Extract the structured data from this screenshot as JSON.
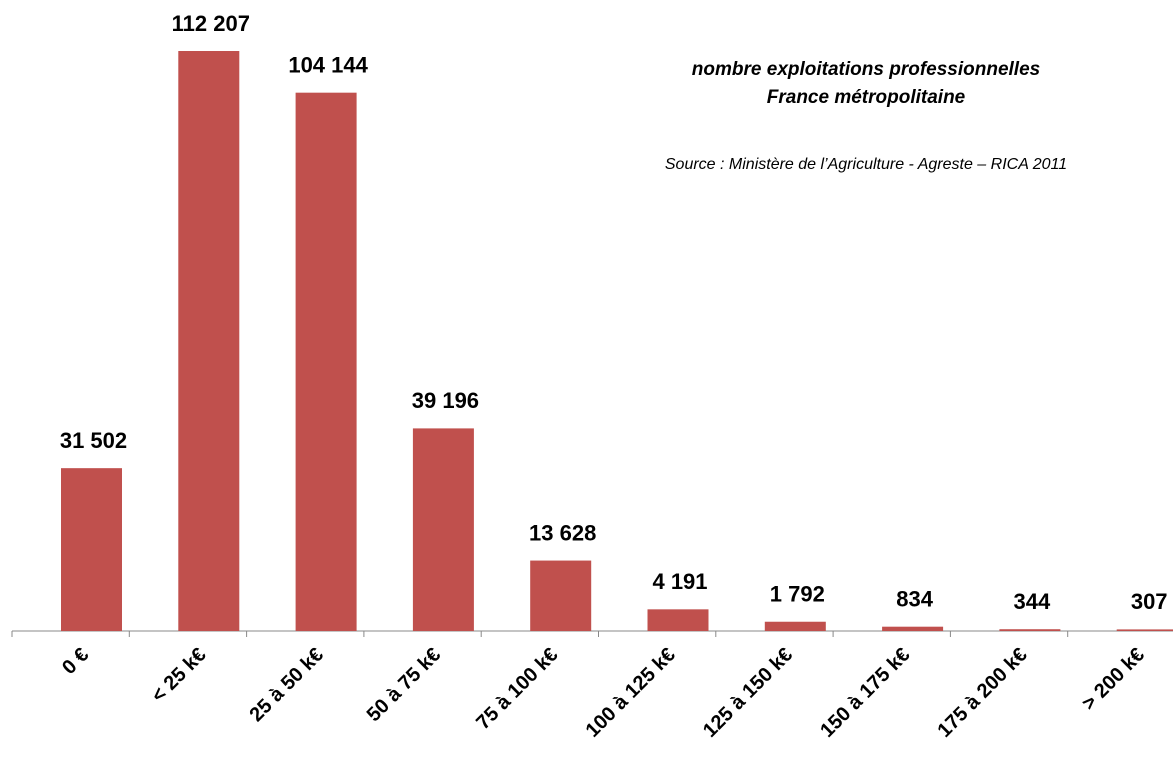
{
  "chart_data": {
    "type": "bar",
    "title": [
      "nombre exploitations  professionnelles",
      "France métropolitaine"
    ],
    "subtitle": "Source : Ministère de l’Agriculture - Agreste – RICA 2011",
    "categories": [
      "0 €",
      "< 25 k€",
      "25 à 50 k€",
      "50 à 75 k€",
      "75 à 100 k€",
      "100 à 125 k€",
      "125 à 150 k€",
      "150 à 175 k€",
      "175 à 200 k€",
      "> 200 k€"
    ],
    "values": [
      31502,
      112207,
      104144,
      39196,
      13628,
      4191,
      1792,
      834,
      344,
      307
    ],
    "value_labels": [
      "31 502",
      "112 207",
      "104 144",
      "39 196",
      "13 628",
      "4 191",
      "1 792",
      "834",
      "344",
      "307"
    ],
    "color": "#c0504d"
  }
}
